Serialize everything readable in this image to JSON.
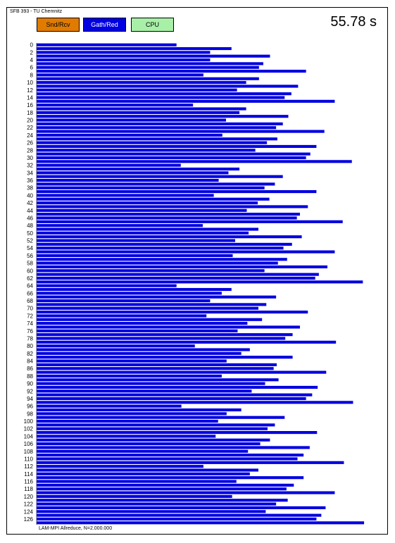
{
  "header": {
    "title": "SFB 393 - TU Chemnitz"
  },
  "legend": {
    "items": [
      {
        "label": "Snd/Rcv",
        "color": "#e07b00"
      },
      {
        "label": "Gath/Red",
        "color": "#0000e0"
      },
      {
        "label": "CPU",
        "color": "#a8f0a8"
      }
    ]
  },
  "elapsed": "55.78 s",
  "footer": {
    "note": "LAM-MPI Allreduce, N=2.000.000"
  },
  "chart_data": {
    "type": "bar",
    "orientation": "horizontal",
    "series_color": "#0000e0",
    "categories": [
      0,
      1,
      2,
      3,
      4,
      5,
      6,
      7,
      8,
      9,
      10,
      11,
      12,
      13,
      14,
      15,
      16,
      17,
      18,
      19,
      20,
      21,
      22,
      23,
      24,
      25,
      26,
      27,
      28,
      29,
      30,
      31,
      32,
      33,
      34,
      35,
      36,
      37,
      38,
      39,
      40,
      41,
      42,
      43,
      44,
      45,
      46,
      47,
      48,
      49,
      50,
      51,
      52,
      53,
      54,
      55,
      56,
      57,
      58,
      59,
      60,
      61,
      62,
      63,
      64,
      65,
      66,
      67,
      68,
      69,
      70,
      71,
      72,
      73,
      74,
      75,
      76,
      77,
      78,
      79,
      80,
      81,
      82,
      83,
      84,
      85,
      86,
      87,
      88,
      89,
      90,
      91,
      92,
      93,
      94,
      95,
      96,
      97,
      98,
      99,
      100,
      101,
      102,
      103,
      104,
      105,
      106,
      107,
      108,
      109,
      110,
      111,
      112,
      113,
      114,
      115,
      116,
      117,
      118,
      119,
      120,
      121,
      122,
      123,
      124,
      125,
      126,
      127
    ],
    "tick_labels": [
      "0",
      "2",
      "4",
      "6",
      "8",
      "10",
      "12",
      "14",
      "16",
      "18",
      "20",
      "22",
      "24",
      "26",
      "28",
      "30",
      "32",
      "34",
      "36",
      "38",
      "40",
      "42",
      "44",
      "46",
      "48",
      "50",
      "52",
      "54",
      "56",
      "58",
      "60",
      "62",
      "64",
      "66",
      "68",
      "70",
      "72",
      "74",
      "76",
      "78",
      "80",
      "82",
      "84",
      "86",
      "88",
      "90",
      "92",
      "94",
      "96",
      "98",
      "100",
      "102",
      "104",
      "106",
      "108",
      "110",
      "112",
      "114",
      "116",
      "118",
      "120",
      "122",
      "124",
      "126"
    ],
    "values": [
      22.9,
      31.9,
      28.4,
      38.2,
      28.4,
      37.1,
      36.4,
      44.1,
      27.3,
      36.4,
      34.3,
      42.8,
      32.8,
      41.7,
      40.6,
      48.8,
      25.6,
      34.3,
      33.2,
      41.2,
      31.0,
      40.3,
      39.2,
      47.1,
      30.4,
      39.4,
      37.7,
      45.8,
      35.8,
      44.8,
      44.1,
      51.6,
      23.6,
      33.2,
      31.4,
      40.3,
      29.8,
      39.0,
      37.3,
      45.8,
      29.0,
      38.1,
      36.2,
      44.4,
      34.4,
      43.1,
      42.6,
      50.1,
      27.2,
      36.3,
      34.7,
      43.4,
      32.5,
      41.8,
      40.4,
      48.8,
      32.1,
      41.0,
      39.5,
      47.6,
      37.3,
      46.2,
      45.6,
      53.4,
      22.9,
      31.9,
      30.3,
      39.2,
      28.4,
      37.6,
      36.3,
      44.4,
      27.8,
      36.9,
      34.5,
      43.1,
      32.9,
      41.9,
      40.7,
      49.0,
      25.9,
      34.9,
      33.5,
      41.9,
      31.1,
      39.3,
      38.8,
      47.4,
      30.3,
      39.6,
      37.4,
      46.0,
      35.2,
      45.1,
      44.1,
      51.8,
      23.7,
      33.5,
      31.1,
      40.6,
      29.7,
      39.0,
      37.8,
      45.9,
      29.3,
      38.2,
      36.6,
      44.7,
      34.6,
      43.7,
      42.7,
      50.3,
      27.3,
      36.3,
      34.9,
      43.7,
      32.7,
      42.1,
      40.9,
      48.8,
      32.0,
      41.1,
      39.2,
      47.3,
      37.5,
      46.6,
      45.8,
      53.6
    ],
    "xlim": [
      0,
      55.78
    ],
    "xlabel": "",
    "ylabel": "",
    "grid": false
  }
}
